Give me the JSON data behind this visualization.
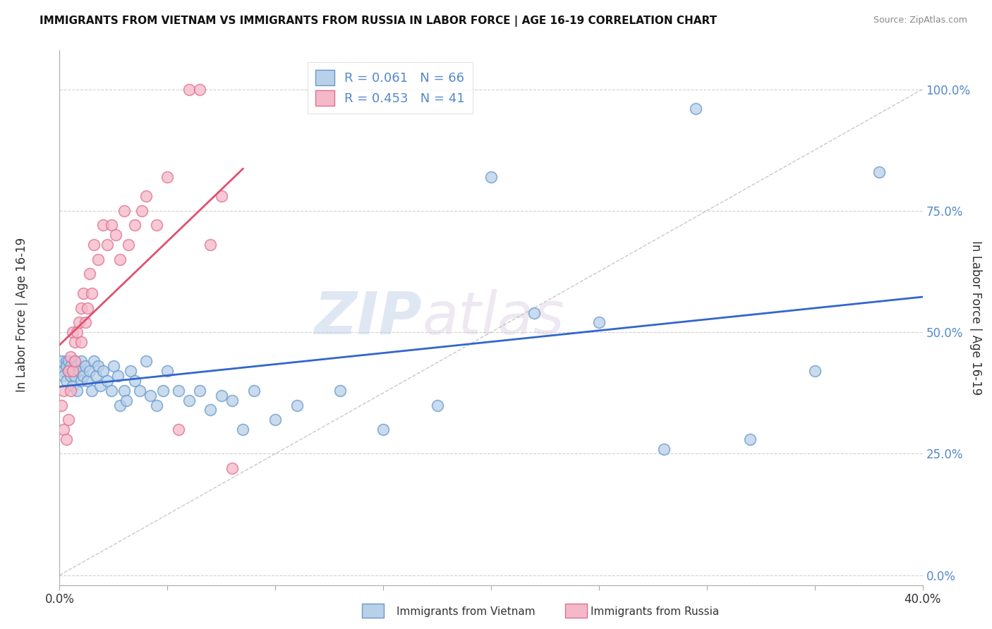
{
  "title": "IMMIGRANTS FROM VIETNAM VS IMMIGRANTS FROM RUSSIA IN LABOR FORCE | AGE 16-19 CORRELATION CHART",
  "source": "Source: ZipAtlas.com",
  "ylabel": "In Labor Force | Age 16-19",
  "xlim": [
    0.0,
    0.4
  ],
  "ylim": [
    -0.02,
    1.08
  ],
  "yticks": [
    0.0,
    0.25,
    0.5,
    0.75,
    1.0
  ],
  "vietnam_fill": "#b8d0e8",
  "vietnam_edge": "#6699cc",
  "russia_fill": "#f5b8c8",
  "russia_edge": "#e07090",
  "line_vietnam_color": "#3366cc",
  "line_russia_color": "#e05070",
  "diag_color": "#ccaaaa",
  "legend_line1": "R = 0.061   N = 66",
  "legend_line2": "R = 0.453   N = 41",
  "watermark_zip": "ZIP",
  "watermark_atlas": "atlas",
  "background_color": "#ffffff",
  "grid_color": "#cccccc",
  "ytick_color": "#5588cc",
  "label_color": "#333333",
  "vietnam_x": [
    0.001,
    0.001,
    0.002,
    0.002,
    0.003,
    0.003,
    0.003,
    0.004,
    0.004,
    0.005,
    0.005,
    0.006,
    0.006,
    0.007,
    0.007,
    0.008,
    0.008,
    0.009,
    0.01,
    0.01,
    0.011,
    0.012,
    0.013,
    0.014,
    0.015,
    0.016,
    0.017,
    0.018,
    0.019,
    0.02,
    0.022,
    0.024,
    0.025,
    0.027,
    0.028,
    0.03,
    0.031,
    0.033,
    0.035,
    0.037,
    0.04,
    0.042,
    0.045,
    0.048,
    0.05,
    0.055,
    0.06,
    0.065,
    0.07,
    0.075,
    0.08,
    0.085,
    0.09,
    0.1,
    0.11,
    0.13,
    0.15,
    0.175,
    0.2,
    0.22,
    0.25,
    0.28,
    0.295,
    0.32,
    0.35,
    0.38
  ],
  "vietnam_y": [
    0.43,
    0.44,
    0.42,
    0.41,
    0.44,
    0.43,
    0.4,
    0.42,
    0.44,
    0.41,
    0.43,
    0.42,
    0.39,
    0.44,
    0.41,
    0.43,
    0.38,
    0.42,
    0.44,
    0.4,
    0.41,
    0.43,
    0.4,
    0.42,
    0.38,
    0.44,
    0.41,
    0.43,
    0.39,
    0.42,
    0.4,
    0.38,
    0.43,
    0.41,
    0.35,
    0.38,
    0.36,
    0.42,
    0.4,
    0.38,
    0.44,
    0.37,
    0.35,
    0.38,
    0.42,
    0.38,
    0.36,
    0.38,
    0.34,
    0.37,
    0.36,
    0.3,
    0.38,
    0.32,
    0.35,
    0.38,
    0.3,
    0.35,
    0.82,
    0.54,
    0.52,
    0.26,
    0.96,
    0.28,
    0.42,
    0.83
  ],
  "russia_x": [
    0.001,
    0.002,
    0.002,
    0.003,
    0.004,
    0.004,
    0.005,
    0.005,
    0.006,
    0.006,
    0.007,
    0.007,
    0.008,
    0.009,
    0.01,
    0.01,
    0.011,
    0.012,
    0.013,
    0.014,
    0.015,
    0.016,
    0.018,
    0.02,
    0.022,
    0.024,
    0.026,
    0.028,
    0.03,
    0.032,
    0.035,
    0.038,
    0.04,
    0.045,
    0.05,
    0.055,
    0.06,
    0.065,
    0.07,
    0.075,
    0.08
  ],
  "russia_y": [
    0.35,
    0.3,
    0.38,
    0.28,
    0.32,
    0.42,
    0.45,
    0.38,
    0.42,
    0.5,
    0.44,
    0.48,
    0.5,
    0.52,
    0.48,
    0.55,
    0.58,
    0.52,
    0.55,
    0.62,
    0.58,
    0.68,
    0.65,
    0.72,
    0.68,
    0.72,
    0.7,
    0.65,
    0.75,
    0.68,
    0.72,
    0.75,
    0.78,
    0.72,
    0.82,
    0.3,
    1.0,
    1.0,
    0.68,
    0.78,
    0.22
  ]
}
